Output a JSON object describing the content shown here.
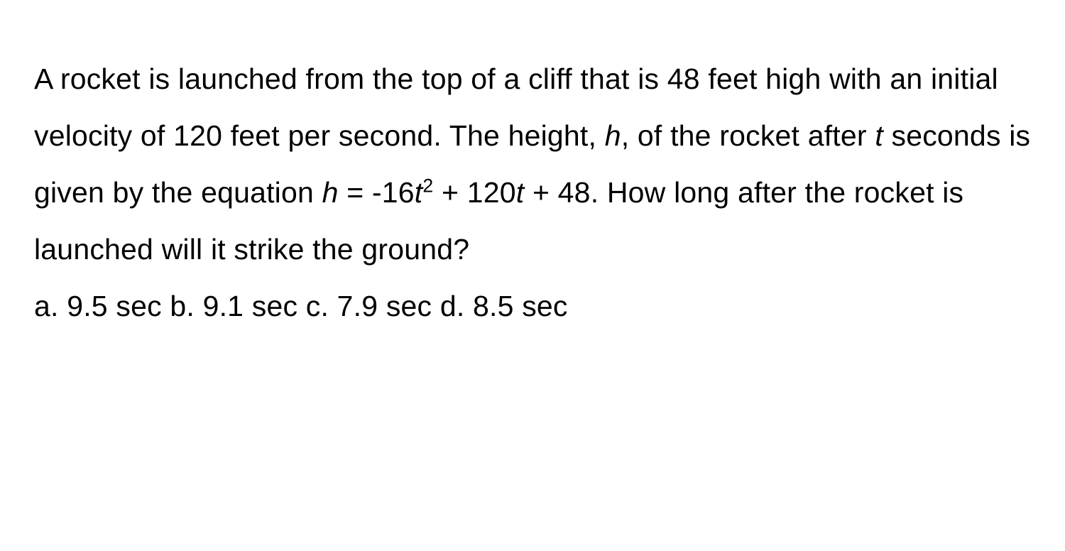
{
  "problem": {
    "text_part1": "A rocket is launched from the top of a cliff that is 48 feet high with an initial velocity of 120 feet per second. The height, ",
    "var_h": "h",
    "text_part2": ", of the rocket after ",
    "var_t1": "t",
    "text_part3": " seconds is given by the equation ",
    "var_h2": "h",
    "text_part4": " = -16",
    "var_t2": "t",
    "exp": "2",
    "text_part5": " + 120",
    "var_t3": "t",
    "text_part6": " + 48. How long after the rocket is launched will it strike the ground?"
  },
  "answers": {
    "a": {
      "label": "a.",
      "value": "9.5 sec"
    },
    "b": {
      "label": "b.",
      "value": "9.1 sec"
    },
    "c": {
      "label": "c.",
      "value": "7.9 sec"
    },
    "d": {
      "label": "d.",
      "value": "8.5 sec"
    }
  },
  "style": {
    "font_size_pt": 41,
    "line_height": 1.95,
    "text_color": "#000000",
    "background_color": "#ffffff"
  }
}
